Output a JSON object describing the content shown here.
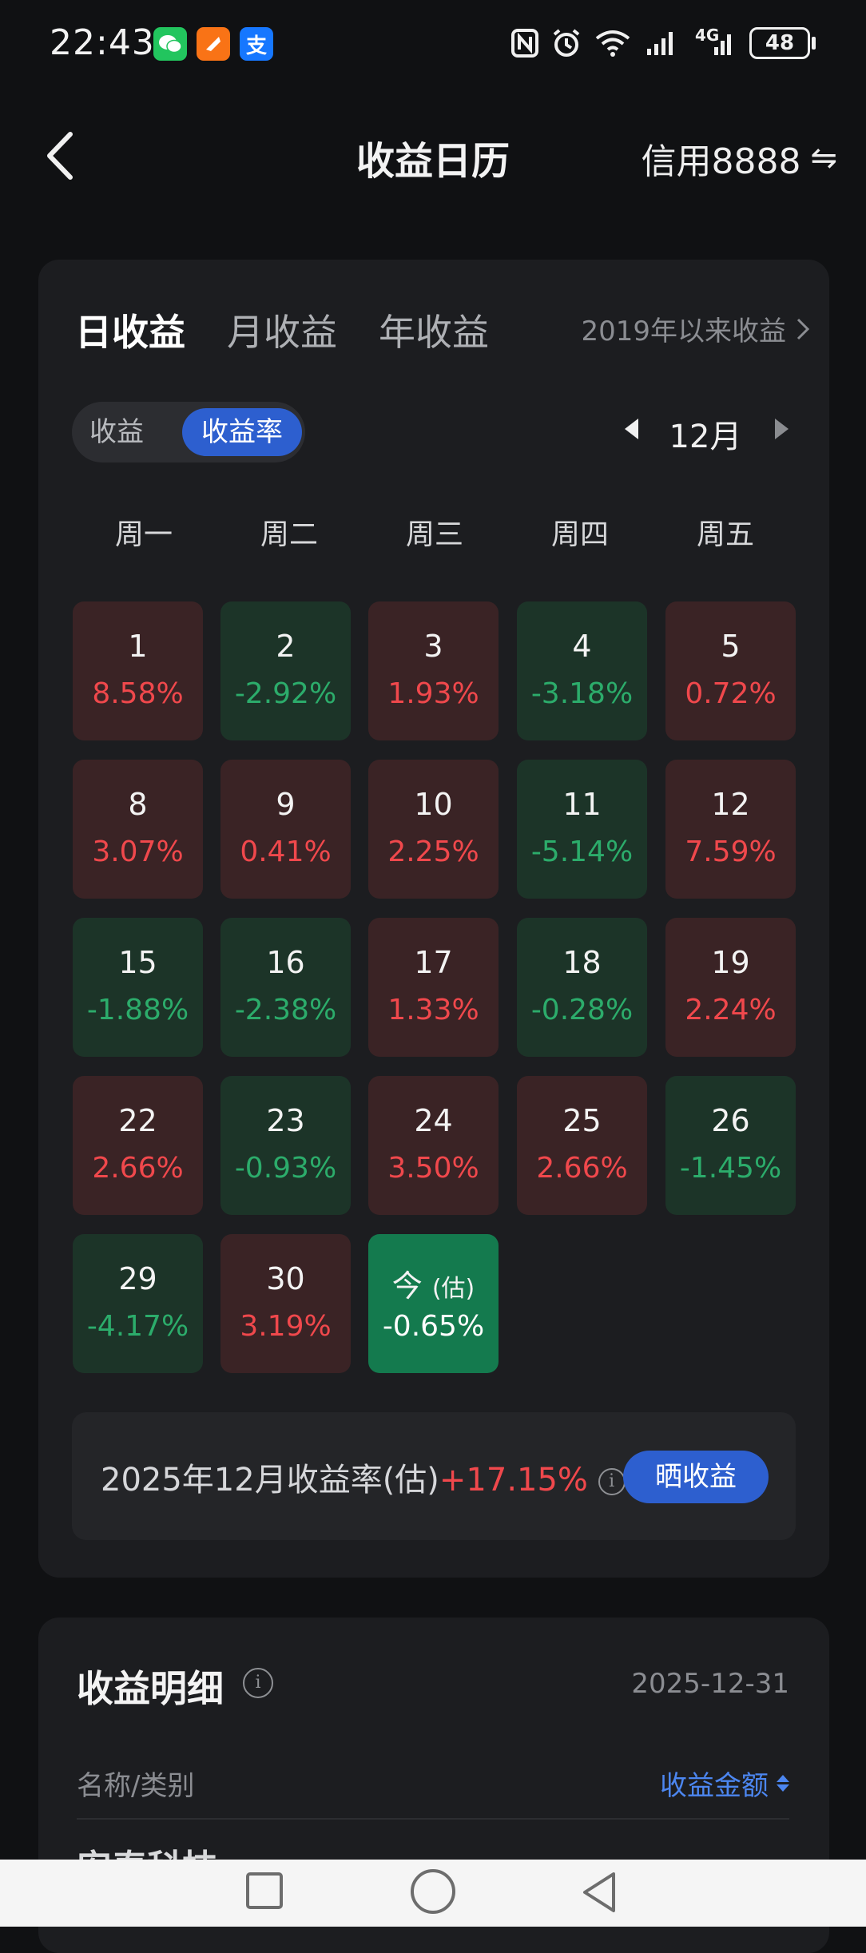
{
  "status_bar": {
    "time": "22:43",
    "apps": [
      {
        "icon": "wechat-icon",
        "color": "#22c55e"
      },
      {
        "icon": "kuaishou-icon",
        "color": "#f97316"
      },
      {
        "icon": "alipay-icon",
        "color": "#1677ff",
        "glyph": "支"
      }
    ],
    "network": "4G",
    "battery": "48"
  },
  "header": {
    "title": "收益日历",
    "account": "信用8888",
    "switch_icon": "⇋"
  },
  "tabs": [
    {
      "label": "日收益",
      "active": true
    },
    {
      "label": "月收益",
      "active": false
    },
    {
      "label": "年收益",
      "active": false
    }
  ],
  "since_link": "2019年以来收益",
  "toggle": {
    "off_label": "收益",
    "on_label": "收益率"
  },
  "month": {
    "label": "12月"
  },
  "weekdays": [
    "周一",
    "周二",
    "周三",
    "周四",
    "周五"
  ],
  "calendar": [
    {
      "day": "1",
      "value": "8.58%",
      "trend": "up"
    },
    {
      "day": "2",
      "value": "-2.92%",
      "trend": "down"
    },
    {
      "day": "3",
      "value": "1.93%",
      "trend": "up"
    },
    {
      "day": "4",
      "value": "-3.18%",
      "trend": "down"
    },
    {
      "day": "5",
      "value": "0.72%",
      "trend": "up"
    },
    {
      "day": "8",
      "value": "3.07%",
      "trend": "up"
    },
    {
      "day": "9",
      "value": "0.41%",
      "trend": "up"
    },
    {
      "day": "10",
      "value": "2.25%",
      "trend": "up"
    },
    {
      "day": "11",
      "value": "-5.14%",
      "trend": "down"
    },
    {
      "day": "12",
      "value": "7.59%",
      "trend": "up"
    },
    {
      "day": "15",
      "value": "-1.88%",
      "trend": "down"
    },
    {
      "day": "16",
      "value": "-2.38%",
      "trend": "down"
    },
    {
      "day": "17",
      "value": "1.33%",
      "trend": "up"
    },
    {
      "day": "18",
      "value": "-0.28%",
      "trend": "down"
    },
    {
      "day": "19",
      "value": "2.24%",
      "trend": "up"
    },
    {
      "day": "22",
      "value": "2.66%",
      "trend": "up"
    },
    {
      "day": "23",
      "value": "-0.93%",
      "trend": "down"
    },
    {
      "day": "24",
      "value": "3.50%",
      "trend": "up"
    },
    {
      "day": "25",
      "value": "2.66%",
      "trend": "up"
    },
    {
      "day": "26",
      "value": "-1.45%",
      "trend": "down"
    },
    {
      "day": "29",
      "value": "-4.17%",
      "trend": "down"
    },
    {
      "day": "30",
      "value": "3.19%",
      "trend": "up"
    },
    {
      "day": "今",
      "day_suffix": "(估)",
      "value": "-0.65%",
      "trend": "today"
    }
  ],
  "summary": {
    "label": "2025年12月收益率(估)",
    "value": "+17.15%",
    "button": "晒收益"
  },
  "detail": {
    "title": "收益明细",
    "date": "2025-12-31",
    "col_name": "名称/类别",
    "col_amount": "收益金额",
    "first_row_partial": "安泰科技"
  },
  "colors": {
    "up": "#f0484c",
    "down": "#2cac6b",
    "accent": "#2d5fcf",
    "today": "#147a4e"
  }
}
